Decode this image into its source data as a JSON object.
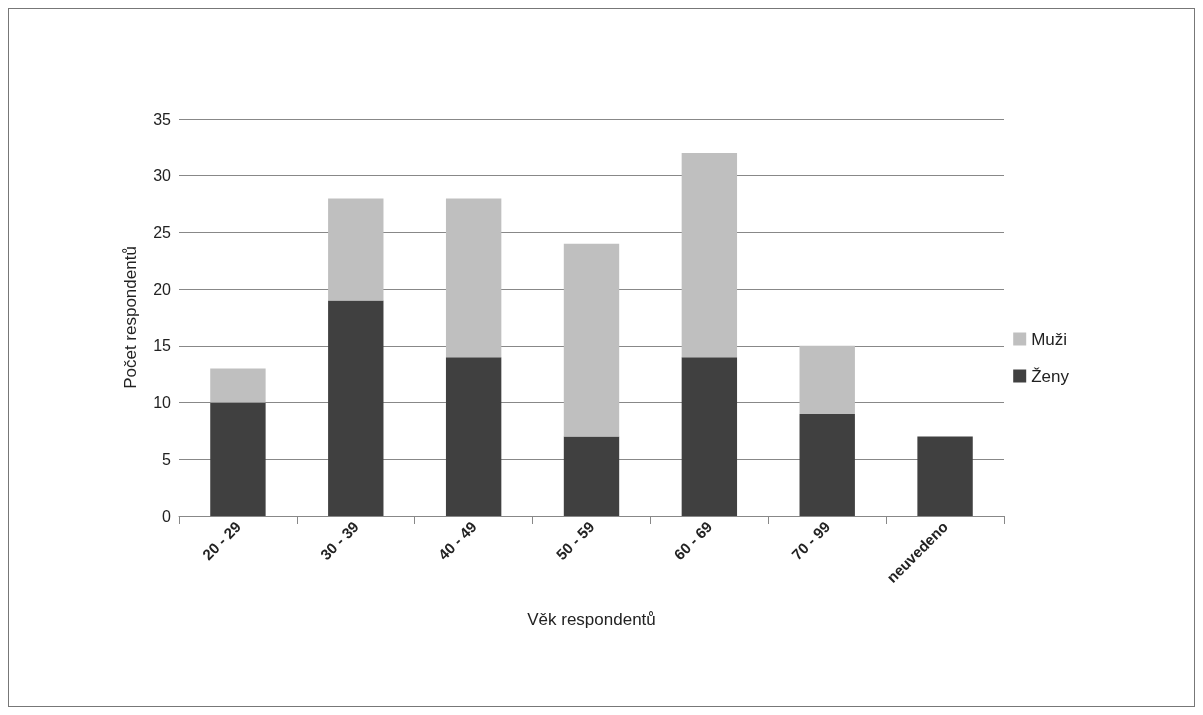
{
  "chart_data": {
    "type": "bar",
    "stacked": true,
    "xlabel": "Věk respondentů",
    "ylabel": "Počet respondentů",
    "categories": [
      "20 - 29",
      "30 - 39",
      "40 - 49",
      "50 - 59",
      "60 - 69",
      "70 - 99",
      "neuvedeno"
    ],
    "series": [
      {
        "name": "Ženy",
        "color": "#404040",
        "values": [
          10,
          19,
          14,
          7,
          14,
          9,
          7
        ]
      },
      {
        "name": "Muži",
        "color": "#bfbfbf",
        "values": [
          3,
          9,
          14,
          17,
          18,
          6,
          null
        ]
      }
    ],
    "ylim": [
      0,
      35
    ],
    "yticks": [
      0,
      5,
      10,
      15,
      20,
      25,
      30,
      35
    ],
    "grid": "y",
    "legend": "right"
  }
}
